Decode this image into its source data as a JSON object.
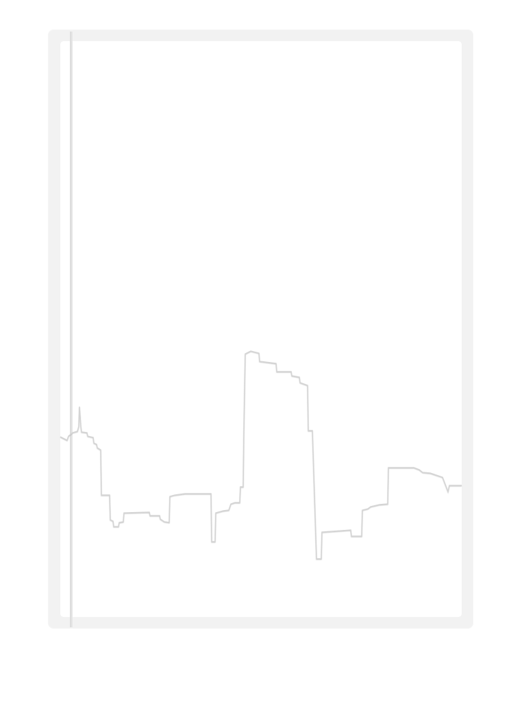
{
  "scene": {
    "description_label": "",
    "colors": {
      "frame": "#f2f2f2",
      "paper": "#ffffff",
      "spine": "#dcdcdc",
      "skyline_stroke": "#c8c8c8",
      "skyline_highlight": "#ffffff"
    },
    "icons": [
      "skyline-illustration"
    ]
  }
}
